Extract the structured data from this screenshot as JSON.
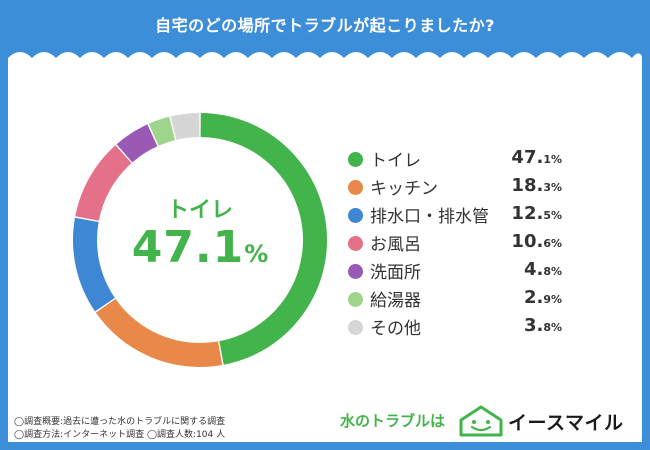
{
  "header": {
    "title": "自宅のどの場所でトラブルが起こりましたか?"
  },
  "center": {
    "label": "トイレ",
    "value": "47.1",
    "unit": "%"
  },
  "colors": {
    "frame": "#3d8ed8",
    "accent_green": "#43b34b",
    "text_dark": "#333333"
  },
  "chart_data": {
    "type": "pie",
    "variant": "donut",
    "title": "自宅のどの場所でトラブルが起こりましたか?",
    "unit": "%",
    "slices": [
      {
        "label": "トイレ",
        "value": 47.1,
        "big": "47.",
        "small": "1%",
        "color": "#43b34b"
      },
      {
        "label": "キッチン",
        "value": 18.3,
        "big": "18.",
        "small": "3%",
        "color": "#e8894a"
      },
      {
        "label": "排水口・排水管",
        "value": 12.5,
        "big": "12.",
        "small": "5%",
        "color": "#3d87d4"
      },
      {
        "label": "お風呂",
        "value": 10.6,
        "big": "10.",
        "small": "6%",
        "color": "#e5708a"
      },
      {
        "label": "洗面所",
        "value": 4.8,
        "big": "4.",
        "small": "8%",
        "color": "#9a59b5"
      },
      {
        "label": "給湯器",
        "value": 2.9,
        "big": "2.",
        "small": "9%",
        "color": "#9ed48c"
      },
      {
        "label": "その他",
        "value": 3.8,
        "big": "3.",
        "small": "8%",
        "color": "#d6d6d6"
      }
    ],
    "legend_position": "right"
  },
  "footnotes": {
    "line1": "◯調査概要:過去に遭った水のトラブルに関する調査",
    "line2": "◯調査方法:インターネット調査 ◯調査人数:104 人"
  },
  "brand": {
    "caption": "水のトラブルは",
    "name": "イースマイル",
    "logo": "house-smile-icon"
  }
}
